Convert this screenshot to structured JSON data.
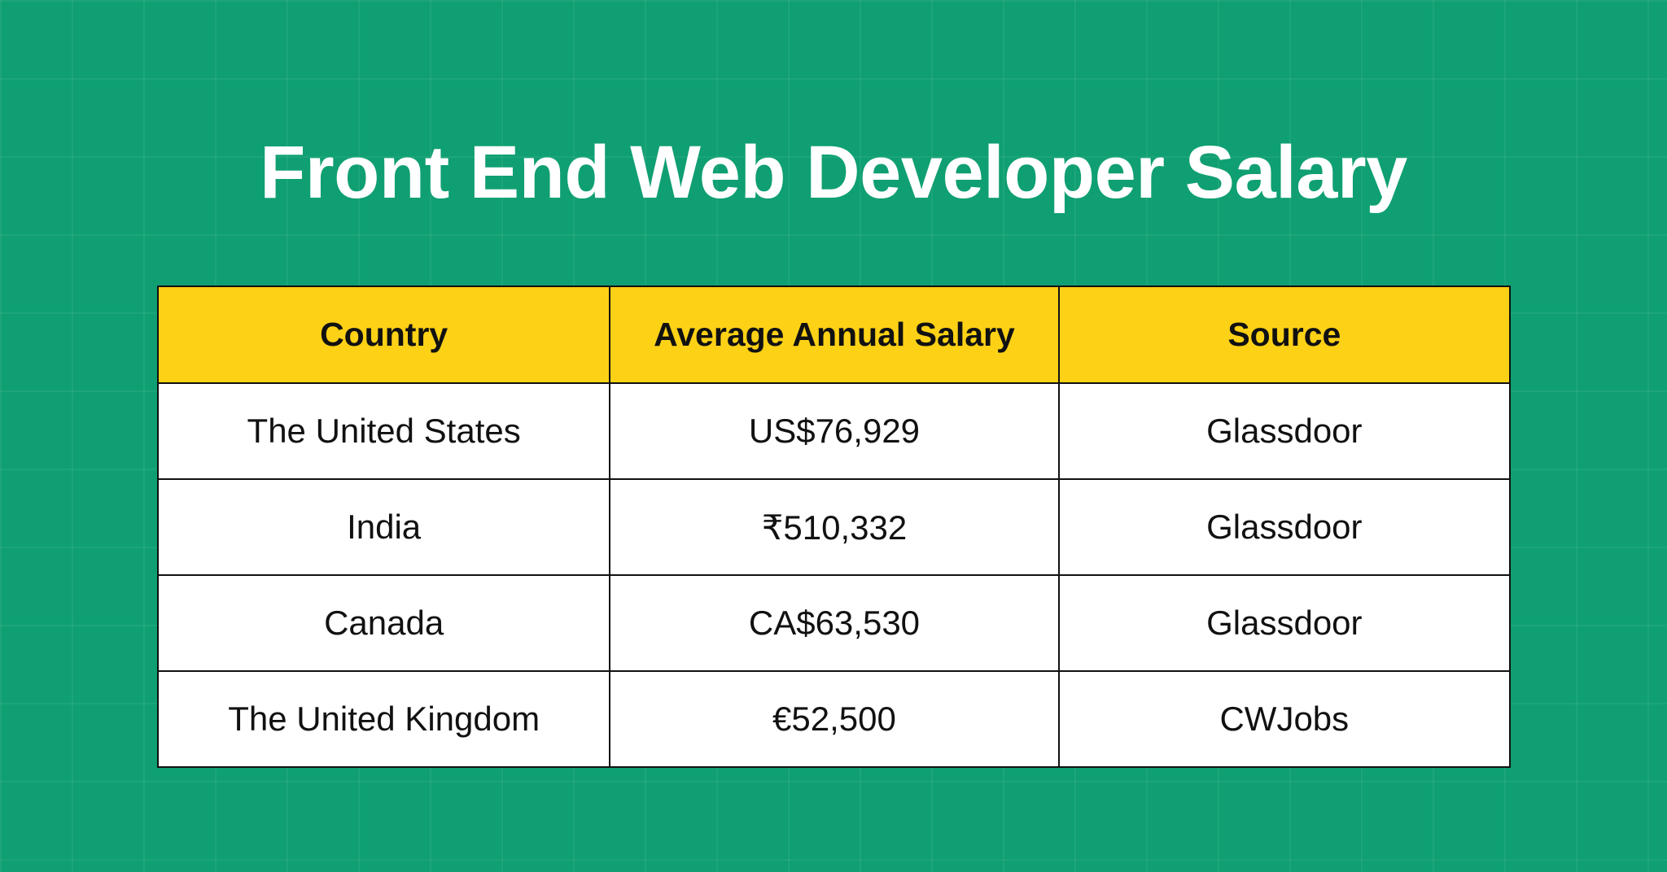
{
  "title": "Front End Web Developer Salary",
  "colors": {
    "background": "#0f9f72",
    "header": "#fdd116"
  },
  "table": {
    "headers": [
      "Country",
      "Average Annual Salary",
      "Source"
    ],
    "rows": [
      [
        "The United States",
        "US$76,929",
        "Glassdoor"
      ],
      [
        "India",
        "₹510,332",
        "Glassdoor"
      ],
      [
        "Canada",
        "CA$63,530",
        "Glassdoor"
      ],
      [
        "The United Kingdom",
        "€52,500",
        "CWJobs"
      ]
    ]
  }
}
